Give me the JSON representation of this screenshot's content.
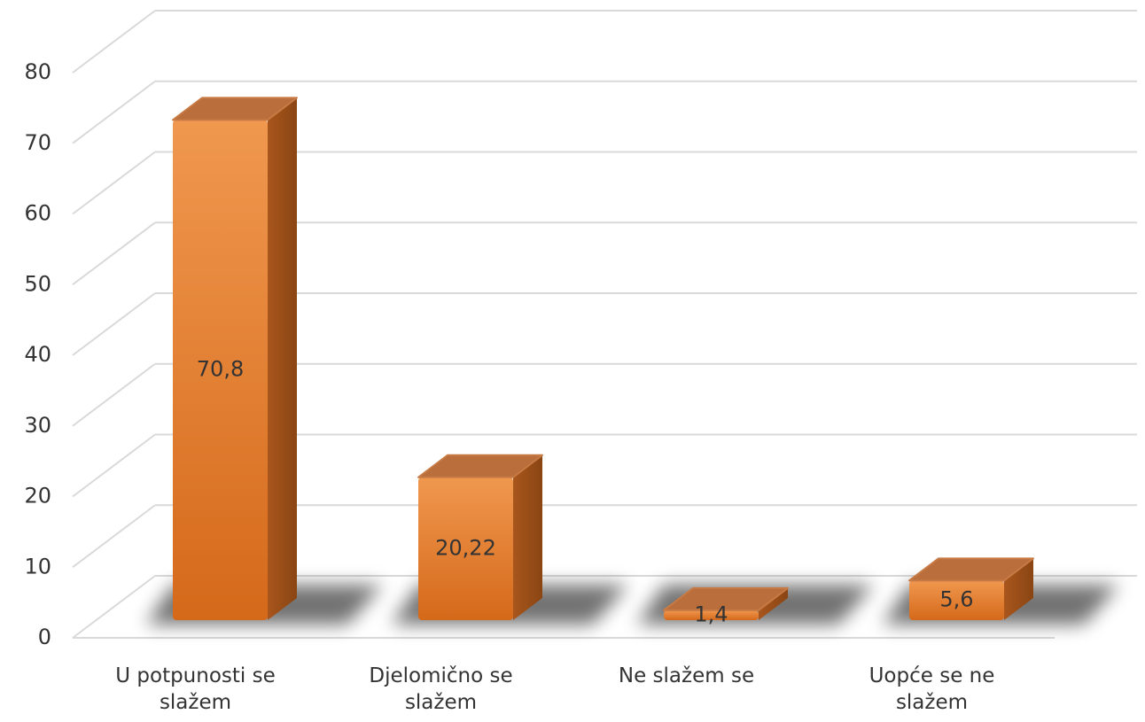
{
  "chart_data": {
    "type": "bar3d",
    "categories": [
      "U potpunosti se slažem",
      "Djelomično se slažem",
      "Ne slažem se",
      "Uopće se ne slažem"
    ],
    "values": [
      70.8,
      20.22,
      1.4,
      5.6
    ],
    "value_labels": [
      "70,8",
      "20,22",
      "1,4",
      "5,6"
    ],
    "color": "#e0762a",
    "ylim": [
      0,
      80
    ],
    "yticks": [
      0,
      10,
      20,
      30,
      40,
      50,
      60,
      70,
      80
    ],
    "grid": true
  }
}
